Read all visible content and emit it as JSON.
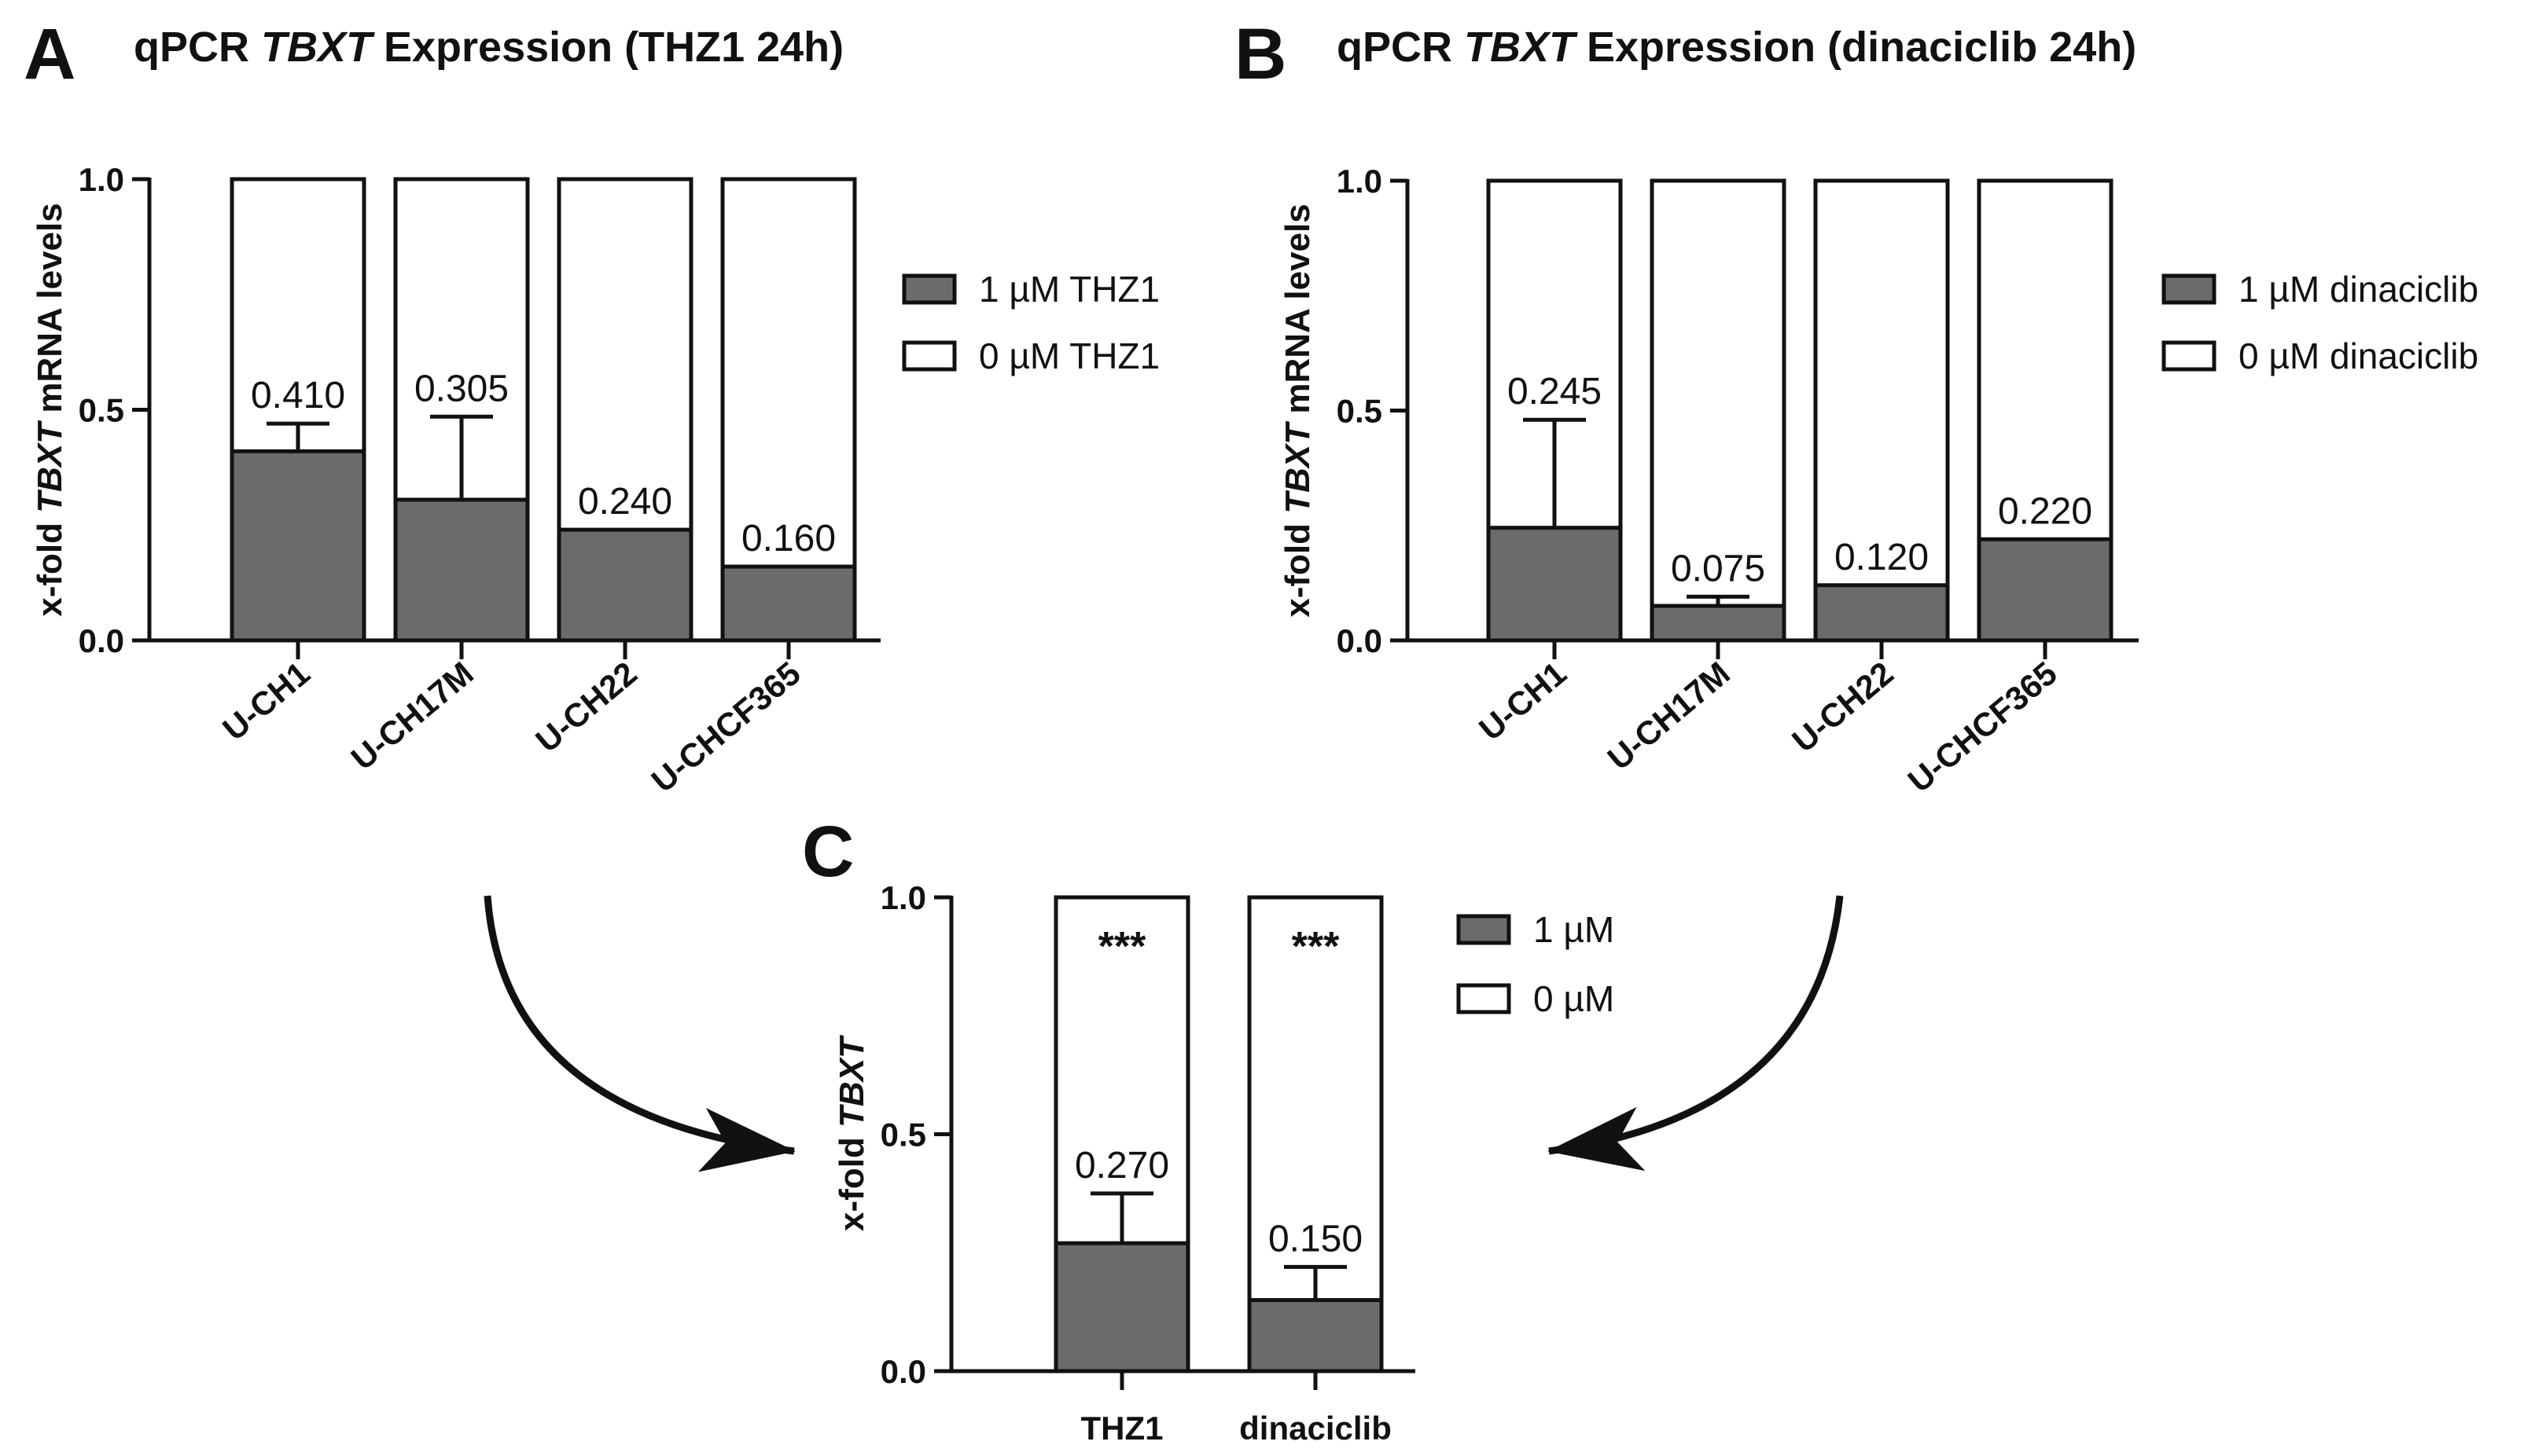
{
  "colors": {
    "treated": "#6b6b6b",
    "control": "#ffffff",
    "stroke": "#111111"
  },
  "chart_data": [
    {
      "id": "A",
      "type": "bar",
      "panel_letter": "A",
      "title_parts": [
        "qPCR ",
        "TBXT",
        " Expression (THZ1 24h)"
      ],
      "ylabel_parts": [
        "x-fold ",
        "TBXT",
        " mRNA levels"
      ],
      "categories": [
        "U-CH1",
        "U-CH17M",
        "U-CH22",
        "U-CHCF365"
      ],
      "series": [
        {
          "name": "1 µM THZ1",
          "values": [
            0.41,
            0.305,
            0.24,
            0.16
          ]
        },
        {
          "name": "0 µM THZ1",
          "values": [
            1.0,
            1.0,
            1.0,
            1.0
          ]
        }
      ],
      "error_upper": [
        0.47,
        0.485,
        null,
        null
      ],
      "data_labels": [
        "0.410",
        "0.305",
        "0.240",
        "0.160"
      ],
      "significance": [],
      "ylim": [
        0,
        1.0
      ],
      "yticks": [
        0.0,
        0.5,
        1.0
      ],
      "ytick_labels": [
        "0.0",
        "0.5",
        "1.0"
      ],
      "legend": [
        "1 µM THZ1",
        "0 µM THZ1"
      ],
      "legend_position": "right",
      "xtick_rotation": "diagonal"
    },
    {
      "id": "B",
      "type": "bar",
      "panel_letter": "B",
      "title_parts": [
        "qPCR ",
        "TBXT",
        " Expression (dinaciclib 24h)"
      ],
      "ylabel_parts": [
        "x-fold ",
        "TBXT",
        " mRNA levels"
      ],
      "categories": [
        "U-CH1",
        "U-CH17M",
        "U-CH22",
        "U-CHCF365"
      ],
      "series": [
        {
          "name": "1 µM dinaciclib",
          "values": [
            0.245,
            0.075,
            0.12,
            0.22
          ]
        },
        {
          "name": "0 µM dinaciclib",
          "values": [
            1.0,
            1.0,
            1.0,
            1.0
          ]
        }
      ],
      "error_upper": [
        0.48,
        0.095,
        null,
        null
      ],
      "data_labels": [
        "0.245",
        "0.075",
        "0.120",
        "0.220"
      ],
      "significance": [],
      "ylim": [
        0,
        1.0
      ],
      "yticks": [
        0.0,
        0.5,
        1.0
      ],
      "ytick_labels": [
        "0.0",
        "0.5",
        "1.0"
      ],
      "legend": [
        "1 µM dinaciclib",
        "0 µM dinaciclib"
      ],
      "legend_position": "right",
      "xtick_rotation": "diagonal"
    },
    {
      "id": "C",
      "type": "bar",
      "panel_letter": "C",
      "title_parts": [],
      "ylabel_parts": [
        "x-fold ",
        "TBXT"
      ],
      "categories": [
        "THZ1",
        "dinaciclib"
      ],
      "series": [
        {
          "name": "1 µM",
          "values": [
            0.27,
            0.15
          ]
        },
        {
          "name": "0 µM",
          "values": [
            1.0,
            1.0
          ]
        }
      ],
      "error_upper": [
        0.375,
        0.22
      ],
      "data_labels": [
        "0.270",
        "0.150"
      ],
      "significance": [
        "***",
        "***"
      ],
      "ylim": [
        0,
        1.0
      ],
      "yticks": [
        0.0,
        0.5,
        1.0
      ],
      "ytick_labels": [
        "0.0",
        "0.5",
        "1.0"
      ],
      "legend": [
        "1 µM",
        "0 µM"
      ],
      "legend_position": "right",
      "xtick_rotation": "horizontal"
    }
  ]
}
